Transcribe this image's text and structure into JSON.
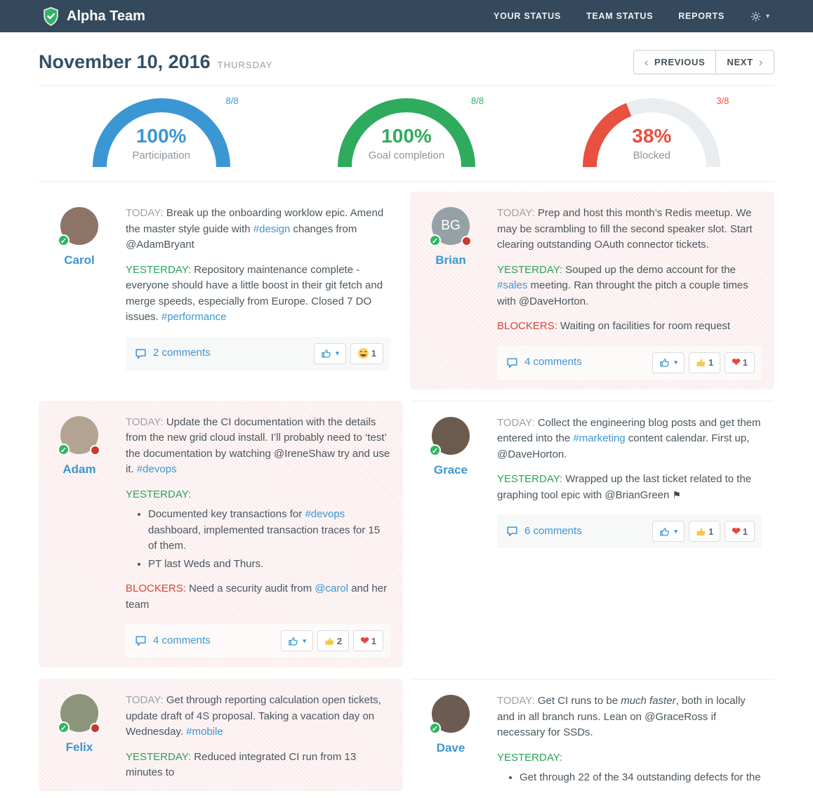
{
  "theme": {
    "navbar_bg": "#35495c",
    "accent_blue": "#3b97d3",
    "accent_green": "#2aa25c",
    "accent_red": "#e04f3f",
    "brand_green": "#2eb563",
    "blocked_card_bg": "#fdf6f6"
  },
  "icons": {
    "chevron_left": "‹",
    "chevron_right": "›",
    "caret_down": "▾",
    "check": "✓",
    "flag": "⚑"
  },
  "navbar": {
    "brand": "Alpha Team",
    "items": [
      {
        "label": "YOUR STATUS"
      },
      {
        "label": "TEAM STATUS"
      },
      {
        "label": "REPORTS"
      }
    ]
  },
  "date_header": {
    "date": "November 10, 2016",
    "weekday": "THURSDAY",
    "previous_label": "PREVIOUS",
    "next_label": "NEXT"
  },
  "chart_data": [
    {
      "type": "gauge",
      "title": "Participation",
      "value_label": "100%",
      "value_pct": 100,
      "fraction": "8/8",
      "color": "#3b97d3",
      "track_color": "#e9edf0",
      "range": [
        0,
        100
      ]
    },
    {
      "type": "gauge",
      "title": "Goal completion",
      "value_label": "100%",
      "value_pct": 100,
      "fraction": "8/8",
      "color": "#2fab5d",
      "track_color": "#e9edf0",
      "range": [
        0,
        100
      ]
    },
    {
      "type": "gauge",
      "title": "Blocked",
      "value_label": "38%",
      "value_pct": 38,
      "fraction": "3/8",
      "color": "#e8503f",
      "track_color": "#e9edf0",
      "range": [
        0,
        100
      ]
    }
  ],
  "members": [
    {
      "name": "Carol",
      "blocked": false,
      "initials": null,
      "avatar_color": "#8d7466",
      "sections": [
        {
          "label": "TODAY:",
          "kind": "today",
          "segments": [
            {
              "t": "Break up the onboarding worklow epic. Amend the master style guide with "
            },
            {
              "t": "#design",
              "s": "link"
            },
            {
              "t": " changes from @AdamBryant"
            }
          ]
        },
        {
          "label": "YESTERDAY:",
          "kind": "yesterday",
          "segments": [
            {
              "t": "Repository maintenance complete - everyone should have a little boost in their git fetch and merge speeds, especially from Europe. Closed 7 DO issues. "
            },
            {
              "t": "#performance",
              "s": "link"
            }
          ]
        }
      ],
      "footer": {
        "comments": "2 comments",
        "reactions": [
          {
            "icon": "laugh",
            "count": 1
          }
        ]
      }
    },
    {
      "name": "Brian",
      "blocked": true,
      "initials": "BG",
      "avatar_color": "#95a1a7",
      "sections": [
        {
          "label": "TODAY:",
          "kind": "today",
          "segments": [
            {
              "t": "Prep and host this month’s Redis meetup. We may be scrambling to fill the second speaker slot. Start clearing outstanding OAuth connector tickets."
            }
          ]
        },
        {
          "label": "YESTERDAY:",
          "kind": "yesterday",
          "segments": [
            {
              "t": "Souped up the demo account for the "
            },
            {
              "t": "#sales",
              "s": "link"
            },
            {
              "t": " meeting. Ran throught the pitch a couple times with @DaveHorton."
            }
          ]
        },
        {
          "label": "BLOCKERS:",
          "kind": "blockers",
          "segments": [
            {
              "t": "Waiting on facilities for room request"
            }
          ]
        }
      ],
      "footer": {
        "comments": "4 comments",
        "reactions": [
          {
            "icon": "thumb",
            "count": 1
          },
          {
            "icon": "heart",
            "count": 1
          }
        ]
      }
    },
    {
      "name": "Adam",
      "blocked": true,
      "initials": null,
      "avatar_color": "#b3a492",
      "sections": [
        {
          "label": "TODAY:",
          "kind": "today",
          "segments": [
            {
              "t": "Update the CI documentation with the details from the new grid cloud install. I’ll probably need to ‘test’ the documentation by watching @IreneShaw try and use it. "
            },
            {
              "t": "#devops",
              "s": "link"
            }
          ]
        },
        {
          "label": "YESTERDAY:",
          "kind": "yesterday",
          "bullets": [
            [
              {
                "t": "Documented key transactions for "
              },
              {
                "t": "#devops",
                "s": "link"
              },
              {
                "t": " dashboard, implemented transaction traces for 15 of them."
              }
            ],
            [
              {
                "t": "PT last Weds and Thurs."
              }
            ]
          ]
        },
        {
          "label": "BLOCKERS:",
          "kind": "blockers",
          "segments": [
            {
              "t": "Need a security audit from "
            },
            {
              "t": "@carol",
              "s": "link"
            },
            {
              "t": " and her team"
            }
          ]
        }
      ],
      "footer": {
        "comments": "4 comments",
        "reactions": [
          {
            "icon": "thumb",
            "count": 2
          },
          {
            "icon": "heart",
            "count": 1
          }
        ]
      }
    },
    {
      "name": "Grace",
      "blocked": false,
      "initials": null,
      "avatar_color": "#6d5a4e",
      "sections": [
        {
          "label": "TODAY:",
          "kind": "today",
          "segments": [
            {
              "t": "Collect the engineering blog posts and get them entered into the "
            },
            {
              "t": "#marketing",
              "s": "link"
            },
            {
              "t": " content calendar. First up, @DaveHorton."
            }
          ]
        },
        {
          "label": "YESTERDAY:",
          "kind": "yesterday",
          "segments": [
            {
              "t": "Wrapped up the last ticket related to the graphing tool epic with @BrianGreen "
            },
            {
              "t": "",
              "s": "flag"
            }
          ]
        }
      ],
      "footer": {
        "comments": "6 comments",
        "reactions": [
          {
            "icon": "thumb",
            "count": 1
          },
          {
            "icon": "heart",
            "count": 1
          }
        ]
      }
    },
    {
      "name": "Felix",
      "blocked": true,
      "initials": null,
      "avatar_color": "#8c9579",
      "sections": [
        {
          "label": "TODAY:",
          "kind": "today",
          "segments": [
            {
              "t": "Get through reporting calculation open tickets, update draft of 4S proposal. Taking a vacation day on Wednesday. "
            },
            {
              "t": "#mobile",
              "s": "link"
            }
          ]
        },
        {
          "label": "YESTERDAY:",
          "kind": "yesterday",
          "segments": [
            {
              "t": "Reduced integrated CI run from 13 minutes to"
            }
          ]
        }
      ],
      "footer": null
    },
    {
      "name": "Dave",
      "blocked": false,
      "initials": null,
      "avatar_color": "#6b5b50",
      "sections": [
        {
          "label": "TODAY:",
          "kind": "today",
          "segments": [
            {
              "t": "Get CI runs to be "
            },
            {
              "t": "much faster",
              "s": "italic"
            },
            {
              "t": ", both in locally and in all branch runs. Lean on @GraceRoss if necessary for SSDs."
            }
          ]
        },
        {
          "label": "YESTERDAY:",
          "kind": "yesterday",
          "bullets": [
            [
              {
                "t": "Get through 22 of the 34 outstanding defects for the"
              }
            ]
          ]
        }
      ],
      "footer": null
    }
  ]
}
